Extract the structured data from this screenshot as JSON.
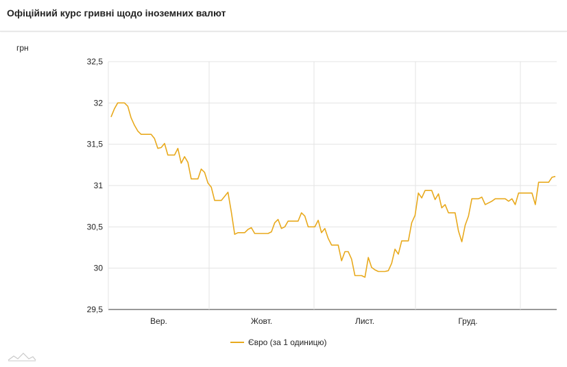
{
  "title": "Офіційний курс гривні щодо іноземних валют",
  "unit_label": "грн",
  "legend_label": "Євро (за 1 одиницю)",
  "line_color": "#e8a91c",
  "chart_data": {
    "type": "line",
    "title": "Офіційний курс гривні щодо іноземних валют",
    "ylabel": "грн",
    "ylim": [
      29.5,
      32.5
    ],
    "yticks": [
      29.5,
      30,
      30.5,
      31,
      31.5,
      32,
      32.5
    ],
    "ytick_labels": [
      "29,5",
      "30",
      "30,5",
      "31",
      "31,5",
      "32",
      "32,5"
    ],
    "grid": true,
    "legend_position": "bottom",
    "month_labels": [
      "Вер.",
      "Жовт.",
      "Лист.",
      "Груд."
    ],
    "series": [
      {
        "name": "Євро (за 1 одиницю)",
        "values": [
          31.83,
          31.93,
          32.0,
          32.0,
          32.0,
          31.96,
          31.82,
          31.73,
          31.66,
          31.62,
          31.62,
          31.62,
          31.62,
          31.57,
          31.45,
          31.46,
          31.51,
          31.37,
          31.37,
          31.37,
          31.45,
          31.27,
          31.35,
          31.28,
          31.08,
          31.08,
          31.08,
          31.2,
          31.16,
          31.03,
          30.98,
          30.82,
          30.82,
          30.82,
          30.87,
          30.92,
          30.68,
          30.41,
          30.43,
          30.43,
          30.43,
          30.47,
          30.49,
          30.42,
          30.42,
          30.42,
          30.42,
          30.42,
          30.44,
          30.55,
          30.59,
          30.48,
          30.5,
          30.57,
          30.57,
          30.57,
          30.57,
          30.67,
          30.63,
          30.5,
          30.5,
          30.5,
          30.58,
          30.43,
          30.48,
          30.36,
          30.28,
          30.28,
          30.28,
          30.09,
          30.2,
          30.2,
          30.11,
          29.91,
          29.91,
          29.91,
          29.89,
          30.13,
          30.01,
          29.98,
          29.96,
          29.96,
          29.96,
          29.97,
          30.06,
          30.23,
          30.17,
          30.33,
          30.33,
          30.33,
          30.55,
          30.64,
          30.91,
          30.85,
          30.94,
          30.94,
          30.94,
          30.83,
          30.9,
          30.73,
          30.77,
          30.67,
          30.67,
          30.67,
          30.45,
          30.32,
          30.52,
          30.63,
          30.84,
          30.84,
          30.84,
          30.86,
          30.77,
          30.79,
          30.81,
          30.84,
          30.84,
          30.84,
          30.84,
          30.81,
          30.84,
          30.77,
          30.91,
          30.91,
          30.91,
          30.91,
          30.91,
          30.77,
          31.04,
          31.04,
          31.04,
          31.04,
          31.1,
          31.11
        ]
      }
    ]
  }
}
